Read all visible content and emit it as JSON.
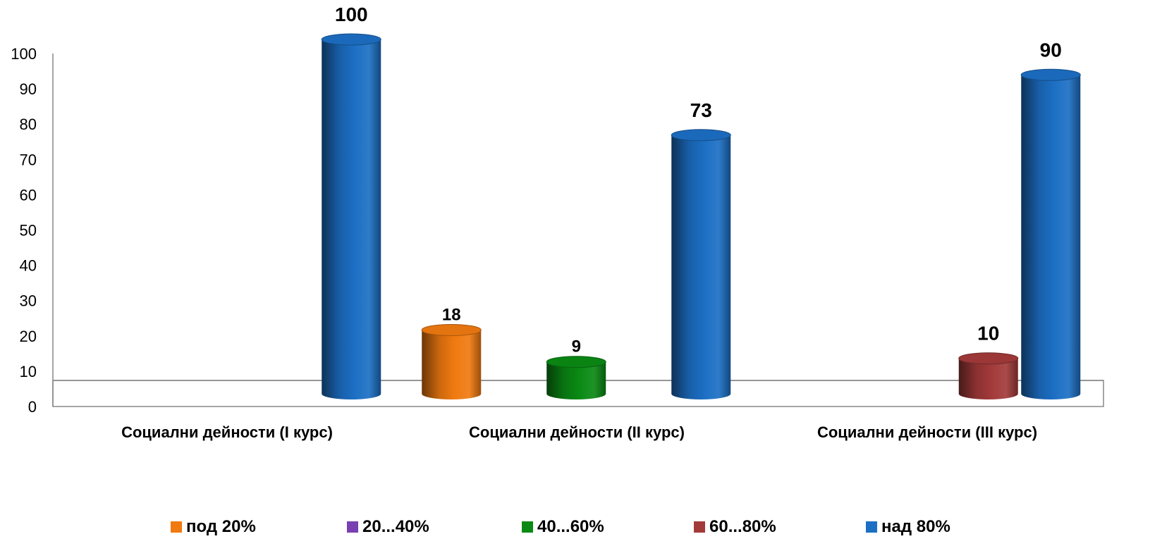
{
  "chart_data": {
    "type": "bar",
    "categories": [
      "Социални дейности (I курс)",
      "Социални дейности (II курс)",
      "Социални дейности (III курс)"
    ],
    "series": [
      {
        "name": "под 20%",
        "color": "#f07a10",
        "values": [
          0,
          18,
          0
        ]
      },
      {
        "name": "20...40%",
        "color": "#7a3fb0",
        "values": [
          0,
          0,
          0
        ]
      },
      {
        "name": "40...60%",
        "color": "#0a8a14",
        "values": [
          0,
          9,
          0
        ]
      },
      {
        "name": "60...80%",
        "color": "#a33a3a",
        "values": [
          0,
          0,
          10
        ]
      },
      {
        "name": "над 80%",
        "color": "#1c6fc4",
        "values": [
          100,
          73,
          90
        ]
      }
    ],
    "data_labels": [
      {
        "series": 4,
        "category": 0,
        "text": "100"
      },
      {
        "series": 0,
        "category": 1,
        "text": "18"
      },
      {
        "series": 2,
        "category": 1,
        "text": "9"
      },
      {
        "series": 4,
        "category": 1,
        "text": "73"
      },
      {
        "series": 3,
        "category": 2,
        "text": "10"
      },
      {
        "series": 4,
        "category": 2,
        "text": "90"
      }
    ],
    "yticks": [
      "0",
      "10",
      "20",
      "30",
      "40",
      "50",
      "60",
      "70",
      "80",
      "90",
      "100"
    ],
    "ylim": [
      0,
      100
    ],
    "xlabel": "",
    "ylabel": "",
    "legend_position": "bottom",
    "grid": false
  }
}
